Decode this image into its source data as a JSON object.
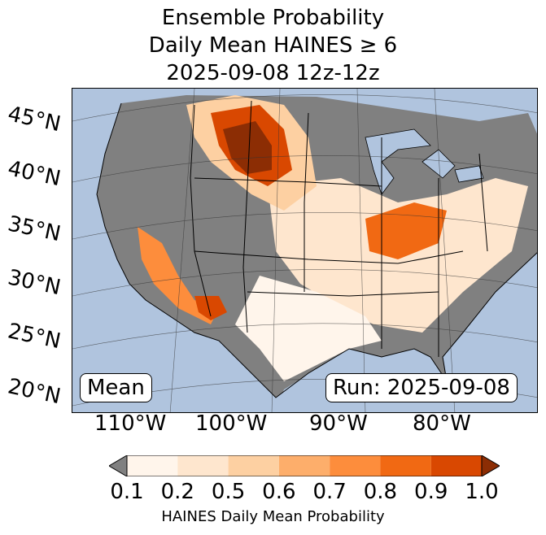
{
  "title": {
    "line1": "Ensemble Probability",
    "line2": "Daily Mean HAINES ≥ 6",
    "line3": "2025-09-08 12z-12z"
  },
  "map": {
    "lat_labels": [
      "45°N",
      "40°N",
      "35°N",
      "30°N",
      "25°N",
      "20°N"
    ],
    "lon_labels": [
      "110°W",
      "100°W",
      "90°W",
      "80°W"
    ],
    "mean_label": "Mean",
    "run_label": "Run: 2025-09-08",
    "colors": {
      "ocean": "#b0c4de",
      "masked": "#808080",
      "lakes": "#b0c4de"
    }
  },
  "colorbar": {
    "ticks": [
      "0.1",
      "0.2",
      "0.5",
      "0.6",
      "0.7",
      "0.8",
      "0.9",
      "1.0"
    ],
    "colors": [
      "#fff5eb",
      "#fee6ce",
      "#fdd0a2",
      "#fdae6b",
      "#fd8d3c",
      "#f16913",
      "#d94801",
      "#8c2d04"
    ],
    "under_color": "#808080",
    "label": "HAINES Daily Mean Probability"
  }
}
